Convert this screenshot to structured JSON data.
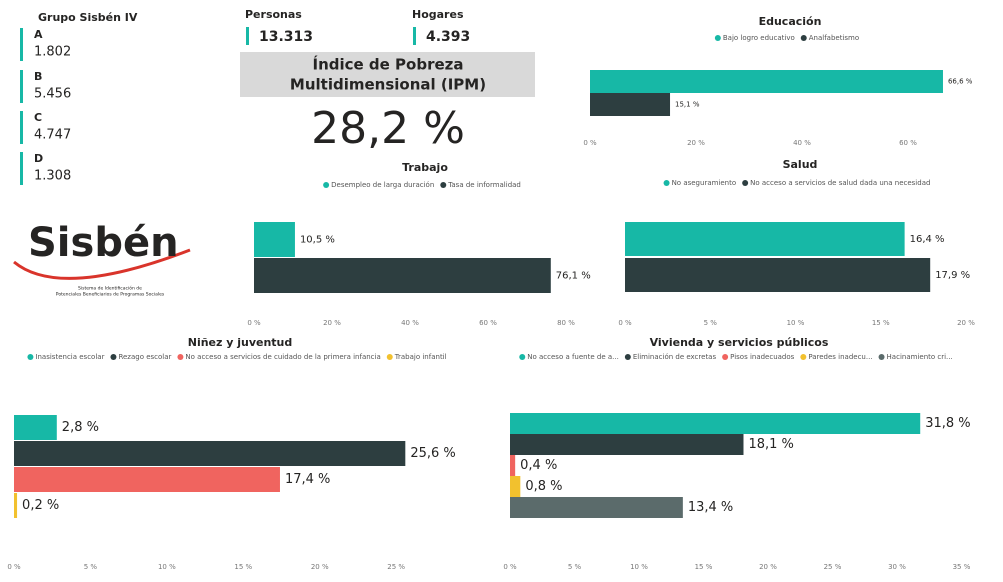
{
  "groups": {
    "title": "Grupo Sisbén IV",
    "items": [
      {
        "label": "A",
        "value": "1.802"
      },
      {
        "label": "B",
        "value": "5.456"
      },
      {
        "label": "C",
        "value": "4.747"
      },
      {
        "label": "D",
        "value": "1.308"
      }
    ]
  },
  "kpis": [
    {
      "label": "Personas",
      "value": "13.313"
    },
    {
      "label": "Hogares",
      "value": "4.393"
    }
  ],
  "ipm": {
    "title_lines": [
      "Índice de Pobreza",
      "Multidimensional (IPM)"
    ],
    "value": "28,2 %"
  },
  "logo": {
    "name": "Sisbén",
    "subtitle_lines": [
      "Sistema de Identificación de",
      "Potenciales Beneficiarios de Programas Sociales"
    ]
  },
  "chart_data": [
    {
      "type": "bar",
      "orientation": "horizontal",
      "title": "Educación",
      "legend": "top",
      "series": [
        {
          "name": "Bajo logro educativo",
          "color": "#17b8a6",
          "values": [
            66.6
          ],
          "value_labels": [
            "66,6 %"
          ]
        },
        {
          "name": "Analfabetismo",
          "color": "#2d3e40",
          "values": [
            15.1
          ],
          "value_labels": [
            "15,1 %"
          ]
        }
      ],
      "xlim": [
        0,
        70
      ],
      "xticks": [
        {
          "value": 0,
          "label": "0 %"
        },
        {
          "value": 20,
          "label": "20 %"
        },
        {
          "value": 40,
          "label": "40 %"
        },
        {
          "value": 60,
          "label": "60 %"
        }
      ]
    },
    {
      "type": "bar",
      "orientation": "horizontal",
      "title": "Trabajo",
      "legend": "top",
      "series": [
        {
          "name": "Desempleo de larga duración",
          "color": "#17b8a6",
          "values": [
            10.5
          ],
          "value_labels": [
            "10,5 %"
          ]
        },
        {
          "name": "Tasa de informalidad",
          "color": "#2d3e40",
          "values": [
            76.1
          ],
          "value_labels": [
            "76,1 %"
          ]
        }
      ],
      "xlim": [
        0,
        85
      ],
      "xticks": [
        {
          "value": 0,
          "label": "0 %"
        },
        {
          "value": 20,
          "label": "20 %"
        },
        {
          "value": 40,
          "label": "40 %"
        },
        {
          "value": 60,
          "label": "60 %"
        },
        {
          "value": 80,
          "label": "80 %"
        }
      ]
    },
    {
      "type": "bar",
      "orientation": "horizontal",
      "title": "Salud",
      "legend": "top",
      "series": [
        {
          "name": "No aseguramiento",
          "color": "#17b8a6",
          "values": [
            16.4
          ],
          "value_labels": [
            "16,4 %"
          ]
        },
        {
          "name": "No acceso a servicios de salud dada una necesidad",
          "color": "#2d3e40",
          "values": [
            17.9
          ],
          "value_labels": [
            "17,9 %"
          ]
        }
      ],
      "xlim": [
        0,
        20
      ],
      "xticks": [
        {
          "value": 0,
          "label": "0 %"
        },
        {
          "value": 5,
          "label": "5 %"
        },
        {
          "value": 10,
          "label": "10 %"
        },
        {
          "value": 15,
          "label": "15 %"
        },
        {
          "value": 20,
          "label": "20 %"
        }
      ]
    },
    {
      "type": "bar",
      "orientation": "horizontal",
      "title": "Niñez y juventud",
      "legend": "top",
      "series": [
        {
          "name": "Inasistencia escolar",
          "color": "#17b8a6",
          "values": [
            2.8
          ],
          "value_labels": [
            "2,8 %"
          ]
        },
        {
          "name": "Rezago escolar",
          "color": "#2d3e40",
          "values": [
            25.6
          ],
          "value_labels": [
            "25,6 %"
          ]
        },
        {
          "name": "No acceso a servicios de cuidado de la primera infancia",
          "color": "#f0645f",
          "values": [
            17.4
          ],
          "value_labels": [
            "17,4 %"
          ]
        },
        {
          "name": "Trabajo infantil",
          "color": "#f2c12e",
          "values": [
            0.2
          ],
          "value_labels": [
            "0,2 %"
          ]
        }
      ],
      "xlim": [
        0,
        28
      ],
      "xticks": [
        {
          "value": 0,
          "label": "0 %"
        },
        {
          "value": 5,
          "label": "5 %"
        },
        {
          "value": 10,
          "label": "10 %"
        },
        {
          "value": 15,
          "label": "15 %"
        },
        {
          "value": 20,
          "label": "20 %"
        },
        {
          "value": 25,
          "label": "25 %"
        }
      ]
    },
    {
      "type": "bar",
      "orientation": "horizontal",
      "title": "Vivienda y servicios públicos",
      "legend": "top",
      "series": [
        {
          "name": "No acceso a fuente de a...",
          "color": "#17b8a6",
          "values": [
            31.8
          ],
          "value_labels": [
            "31,8 %"
          ]
        },
        {
          "name": "Eliminación de excretas",
          "color": "#2d3e40",
          "values": [
            18.1
          ],
          "value_labels": [
            "18,1 %"
          ]
        },
        {
          "name": "Pisos inadecuados",
          "color": "#f0645f",
          "values": [
            0.4
          ],
          "value_labels": [
            "0,4 %"
          ]
        },
        {
          "name": "Paredes inadecu...",
          "color": "#f2c12e",
          "values": [
            0.8
          ],
          "value_labels": [
            "0,8 %"
          ]
        },
        {
          "name": "Hacinamiento cri...",
          "color": "#5b6b6b",
          "values": [
            13.4
          ],
          "value_labels": [
            "13,4 %"
          ]
        }
      ],
      "xlim": [
        0,
        35
      ],
      "xticks": [
        {
          "value": 0,
          "label": "0 %"
        },
        {
          "value": 5,
          "label": "5 %"
        },
        {
          "value": 10,
          "label": "10 %"
        },
        {
          "value": 15,
          "label": "15 %"
        },
        {
          "value": 20,
          "label": "20 %"
        },
        {
          "value": 25,
          "label": "25 %"
        },
        {
          "value": 30,
          "label": "30 %"
        },
        {
          "value": 35,
          "label": "35 %"
        }
      ]
    }
  ]
}
